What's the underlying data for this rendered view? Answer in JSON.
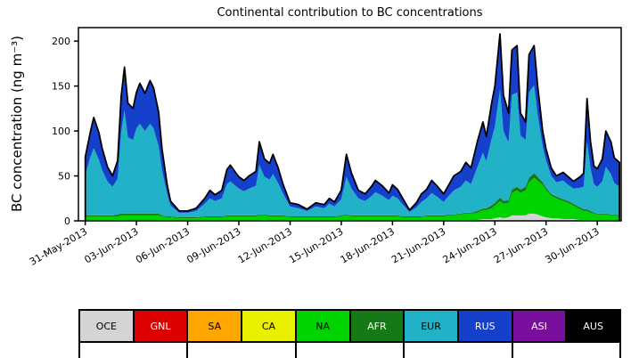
{
  "chart_data": {
    "type": "area",
    "stacked": true,
    "title": "Continental contribution to BC concentrations",
    "ylabel": "BC concentration (ng m⁻³)",
    "xlabel": "",
    "grid": false,
    "legend_position": "bottom-table",
    "outline_color": "#000000",
    "ylim": [
      0,
      215
    ],
    "yticks": [
      0,
      50,
      100,
      150,
      200
    ],
    "xlim": [
      -0.4,
      31.4
    ],
    "xtick_positions_days": [
      0,
      3,
      6,
      9,
      12,
      15,
      18,
      21,
      24,
      27,
      30
    ],
    "xtick_labels": [
      "31-May-2013",
      "03-Jun-2013",
      "06-Jun-2013",
      "09-Jun-2013",
      "12-Jun-2013",
      "15-Jun-2013",
      "18-Jun-2013",
      "21-Jun-2013",
      "24-Jun-2013",
      "27-Jun-2013",
      "30-Jun-2013"
    ],
    "x_days": [
      0,
      0.3,
      0.5,
      0.8,
      1,
      1.3,
      1.6,
      1.9,
      2.1,
      2.3,
      2.5,
      2.8,
      3,
      3.2,
      3.5,
      3.8,
      4,
      4.3,
      4.5,
      4.8,
      5,
      5.5,
      6,
      6.5,
      7,
      7.3,
      7.6,
      8,
      8.3,
      8.5,
      8.8,
      9,
      9.3,
      9.6,
      10,
      10.2,
      10.5,
      10.8,
      11,
      11.3,
      11.6,
      12,
      12.5,
      13,
      13.5,
      14,
      14.3,
      14.6,
      15,
      15.3,
      15.6,
      16,
      16.4,
      16.8,
      17,
      17.4,
      17.8,
      18,
      18.3,
      18.6,
      19,
      19.4,
      19.7,
      20,
      20.3,
      20.6,
      21,
      21.3,
      21.6,
      22,
      22.3,
      22.6,
      23,
      23.3,
      23.5,
      23.8,
      24,
      24.3,
      24.5,
      24.8,
      25,
      25.3,
      25.5,
      25.8,
      26,
      26.3,
      26.5,
      26.8,
      27,
      27.3,
      27.6,
      28,
      28.3,
      28.6,
      29,
      29.2,
      29.4,
      29.6,
      29.8,
      30,
      30.3,
      30.5,
      30.8,
      31,
      31.3
    ],
    "series": [
      {
        "id": "oce",
        "label": "OCE",
        "color": "#d4d4d4",
        "text_color": "#000000",
        "values": [
          1,
          1,
          1,
          1,
          1,
          1,
          1,
          1,
          1,
          1,
          1,
          1,
          1,
          1,
          1,
          1,
          1,
          1,
          1,
          1,
          1,
          1,
          1,
          1,
          1,
          1,
          1,
          1,
          1,
          1,
          1,
          1,
          1,
          1,
          1,
          1,
          1,
          1,
          1,
          1,
          1,
          1,
          1,
          1,
          1,
          1,
          1,
          1,
          1,
          1,
          1,
          1,
          1,
          1,
          1,
          1,
          1,
          1,
          1,
          1,
          1,
          1,
          1,
          1,
          1,
          1,
          1,
          1,
          1,
          1,
          1,
          1,
          1,
          2,
          2,
          2,
          3,
          4,
          3,
          4,
          6,
          6,
          6,
          6,
          8,
          8,
          7,
          5,
          4,
          3,
          3,
          2,
          2,
          2,
          1,
          1,
          1,
          1,
          1,
          1,
          1,
          1,
          1,
          1,
          1
        ]
      },
      {
        "id": "gnl",
        "label": "GNL",
        "color": "#dd0000",
        "text_color": "#ffffff",
        "constant": 0
      },
      {
        "id": "sa",
        "label": "SA",
        "color": "#ffa600",
        "text_color": "#000000",
        "constant": 0
      },
      {
        "id": "ca",
        "label": "CA",
        "color": "#e8f000",
        "text_color": "#000000",
        "constant": 0
      },
      {
        "id": "na",
        "label": "NA",
        "color": "#00d400",
        "text_color": "#000000",
        "values": [
          4,
          4,
          4,
          4,
          4,
          4,
          4,
          4,
          5,
          5,
          5,
          5,
          5,
          5,
          5,
          5,
          5,
          5,
          4,
          3,
          3,
          2,
          2,
          2,
          3,
          3,
          3,
          3,
          4,
          4,
          4,
          4,
          4,
          4,
          4,
          5,
          5,
          4,
          4,
          4,
          4,
          3,
          3,
          3,
          3,
          3,
          3,
          3,
          4,
          5,
          4,
          4,
          4,
          4,
          4,
          4,
          4,
          4,
          4,
          3,
          3,
          3,
          3,
          4,
          4,
          4,
          4,
          5,
          5,
          6,
          7,
          7,
          8,
          10,
          10,
          12,
          14,
          18,
          16,
          16,
          25,
          28,
          25,
          28,
          35,
          40,
          38,
          35,
          30,
          25,
          22,
          20,
          18,
          15,
          12,
          10,
          10,
          8,
          7,
          6,
          6,
          6,
          5,
          5,
          4
        ]
      },
      {
        "id": "afr",
        "label": "AFR",
        "color": "#157a15",
        "text_color": "#ffffff",
        "values": [
          1,
          1,
          1,
          1,
          1,
          1,
          1,
          2,
          2,
          2,
          2,
          2,
          2,
          2,
          2,
          2,
          2,
          2,
          1,
          1,
          1,
          1,
          1,
          1,
          1,
          1,
          1,
          1,
          1,
          1,
          1,
          1,
          1,
          1,
          1,
          1,
          1,
          1,
          1,
          1,
          1,
          1,
          1,
          1,
          1,
          1,
          1,
          1,
          1,
          1,
          1,
          1,
          1,
          1,
          1,
          1,
          1,
          1,
          1,
          1,
          1,
          1,
          1,
          1,
          1,
          1,
          1,
          1,
          1,
          1,
          1,
          1,
          2,
          2,
          2,
          3,
          3,
          4,
          3,
          3,
          4,
          4,
          4,
          4,
          5,
          5,
          4,
          3,
          3,
          2,
          2,
          2,
          2,
          2,
          2,
          2,
          2,
          2,
          1,
          1,
          1,
          1,
          1,
          1,
          1
        ]
      },
      {
        "id": "eur",
        "label": "EUR",
        "color": "#22b2c8",
        "text_color": "#000000",
        "values": [
          45,
          65,
          75,
          62,
          50,
          38,
          32,
          40,
          90,
          115,
          85,
          82,
          95,
          100,
          92,
          100,
          95,
          75,
          50,
          25,
          12,
          5,
          5,
          7,
          14,
          20,
          17,
          20,
          35,
          38,
          33,
          30,
          27,
          30,
          33,
          55,
          42,
          40,
          46,
          36,
          24,
          11,
          9,
          6,
          11,
          9,
          14,
          11,
          18,
          42,
          30,
          19,
          16,
          22,
          26,
          22,
          17,
          22,
          19,
          13,
          5,
          10,
          16,
          19,
          25,
          21,
          15,
          21,
          27,
          30,
          36,
          32,
          50,
          62,
          52,
          74,
          85,
          120,
          78,
          64,
          105,
          105,
          60,
          52,
          95,
          98,
          70,
          40,
          30,
          20,
          16,
          21,
          18,
          17,
          22,
          25,
          75,
          48,
          32,
          30,
          36,
          52,
          45,
          35,
          32
        ]
      },
      {
        "id": "rus",
        "label": "RUS",
        "color": "#1440cc",
        "text_color": "#ffffff",
        "values": [
          20,
          28,
          34,
          30,
          24,
          16,
          12,
          20,
          40,
          48,
          38,
          35,
          40,
          45,
          42,
          48,
          45,
          38,
          24,
          10,
          5,
          2,
          2,
          3,
          6,
          9,
          7,
          9,
          16,
          18,
          15,
          13,
          12,
          14,
          16,
          26,
          20,
          18,
          22,
          17,
          10,
          4,
          4,
          2,
          4,
          4,
          6,
          5,
          10,
          25,
          17,
          9,
          8,
          11,
          13,
          11,
          8,
          12,
          10,
          7,
          2,
          5,
          9,
          10,
          14,
          12,
          9,
          12,
          16,
          17,
          20,
          18,
          29,
          34,
          28,
          39,
          45,
          62,
          40,
          33,
          50,
          52,
          25,
          20,
          42,
          44,
          32,
          17,
          13,
          9,
          7,
          9,
          9,
          8,
          12,
          15,
          48,
          30,
          20,
          20,
          25,
          40,
          36,
          28,
          27
        ]
      },
      {
        "id": "asi",
        "label": "ASI",
        "color": "#7a0f9e",
        "text_color": "#ffffff",
        "constant": 0
      },
      {
        "id": "aus",
        "label": "AUS",
        "color": "#000000",
        "text_color": "#ffffff",
        "constant": 0
      }
    ]
  }
}
